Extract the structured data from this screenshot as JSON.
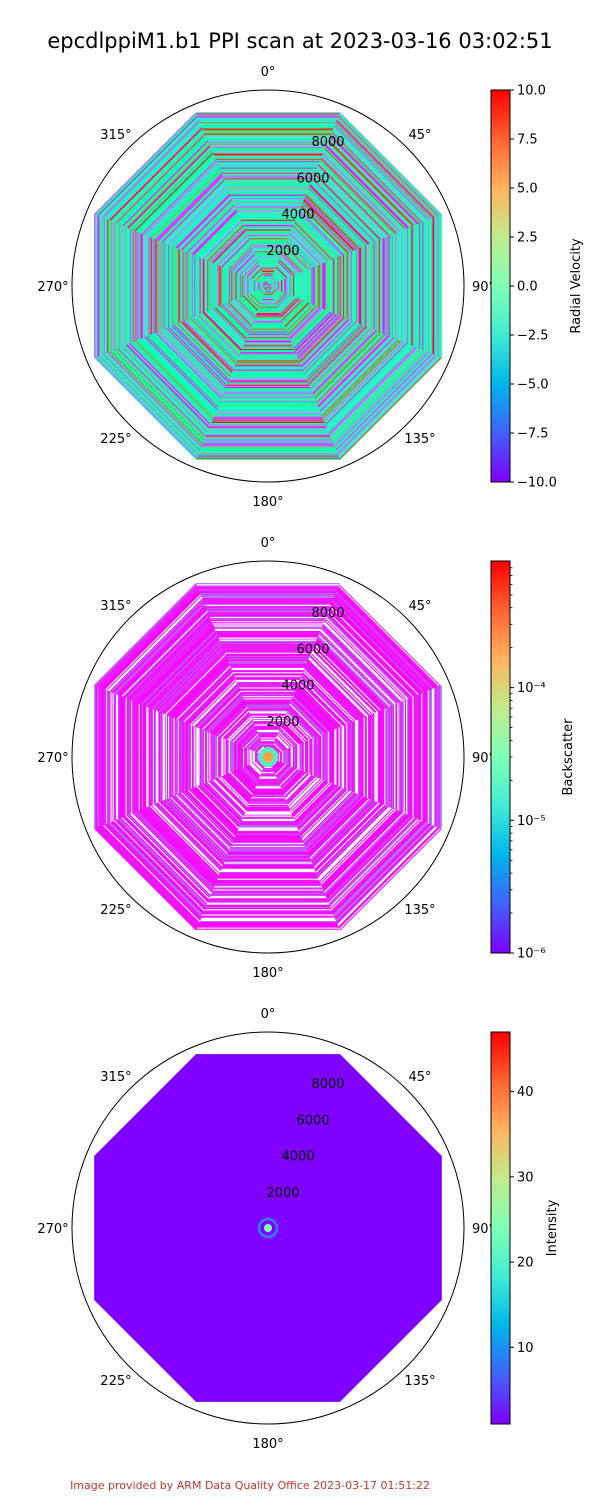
{
  "title": "epcdlppiM1.b1 PPI scan at 2023-03-16 03:02:51",
  "footer": "Image provided by ARM Data Quality Office 2023-03-17 01:51:22",
  "chart_data": [
    {
      "type": "heatmap",
      "projection": "polar",
      "theta_zero": "north",
      "theta_direction": "clockwise",
      "angle_tick_labels": [
        "0°",
        "45°",
        "90°",
        "135°",
        "180°",
        "225°",
        "270°",
        "315°"
      ],
      "radial_tick_labels": [
        "2000",
        "4000",
        "6000",
        "8000"
      ],
      "radial_ticks": [
        2000,
        4000,
        6000,
        8000
      ],
      "rlim": [
        0,
        10000
      ],
      "colormap": "rainbow",
      "colorbar_label": "Radial Velocity",
      "colorbar_scale": "linear",
      "clim": [
        -10.0,
        10.0
      ],
      "colorbar_ticks": [
        10.0,
        7.5,
        5.0,
        2.5,
        0.0,
        -2.5,
        -5.0,
        -7.5,
        -10.0
      ],
      "colorbar_tick_labels": [
        "10.0",
        "7.5",
        "5.0",
        "2.5",
        "0.0",
        "−2.5",
        "−5.0",
        "−7.5",
        "−10.0"
      ],
      "pattern": "noisy"
    },
    {
      "type": "heatmap",
      "projection": "polar",
      "theta_zero": "north",
      "theta_direction": "clockwise",
      "angle_tick_labels": [
        "0°",
        "45°",
        "90°",
        "135°",
        "180°",
        "225°",
        "270°",
        "315°"
      ],
      "radial_tick_labels": [
        "2000",
        "4000",
        "6000",
        "8000"
      ],
      "radial_ticks": [
        2000,
        4000,
        6000,
        8000
      ],
      "rlim": [
        0,
        10000
      ],
      "colormap": "rainbow",
      "colorbar_label": "Backscatter",
      "colorbar_scale": "log",
      "clim": [
        1e-06,
        0.0009
      ],
      "colorbar_ticks": [
        0.0001,
        1e-05,
        1e-06
      ],
      "colorbar_tick_labels": [
        "10⁻⁴",
        "10⁻⁵",
        "10⁻⁶"
      ],
      "pattern": "low"
    },
    {
      "type": "heatmap",
      "projection": "polar",
      "theta_zero": "north",
      "theta_direction": "clockwise",
      "angle_tick_labels": [
        "0°",
        "45°",
        "90°",
        "135°",
        "180°",
        "225°",
        "270°",
        "315°"
      ],
      "radial_tick_labels": [
        "2000",
        "4000",
        "6000",
        "8000"
      ],
      "radial_ticks": [
        2000,
        4000,
        6000,
        8000
      ],
      "rlim": [
        0,
        10000
      ],
      "colormap": "rainbow",
      "colorbar_label": "Intensity",
      "colorbar_scale": "linear",
      "clim": [
        1,
        47
      ],
      "colorbar_ticks": [
        40,
        30,
        20,
        10
      ],
      "colorbar_tick_labels": [
        "40",
        "30",
        "20",
        "10"
      ],
      "pattern": "uniform"
    }
  ]
}
